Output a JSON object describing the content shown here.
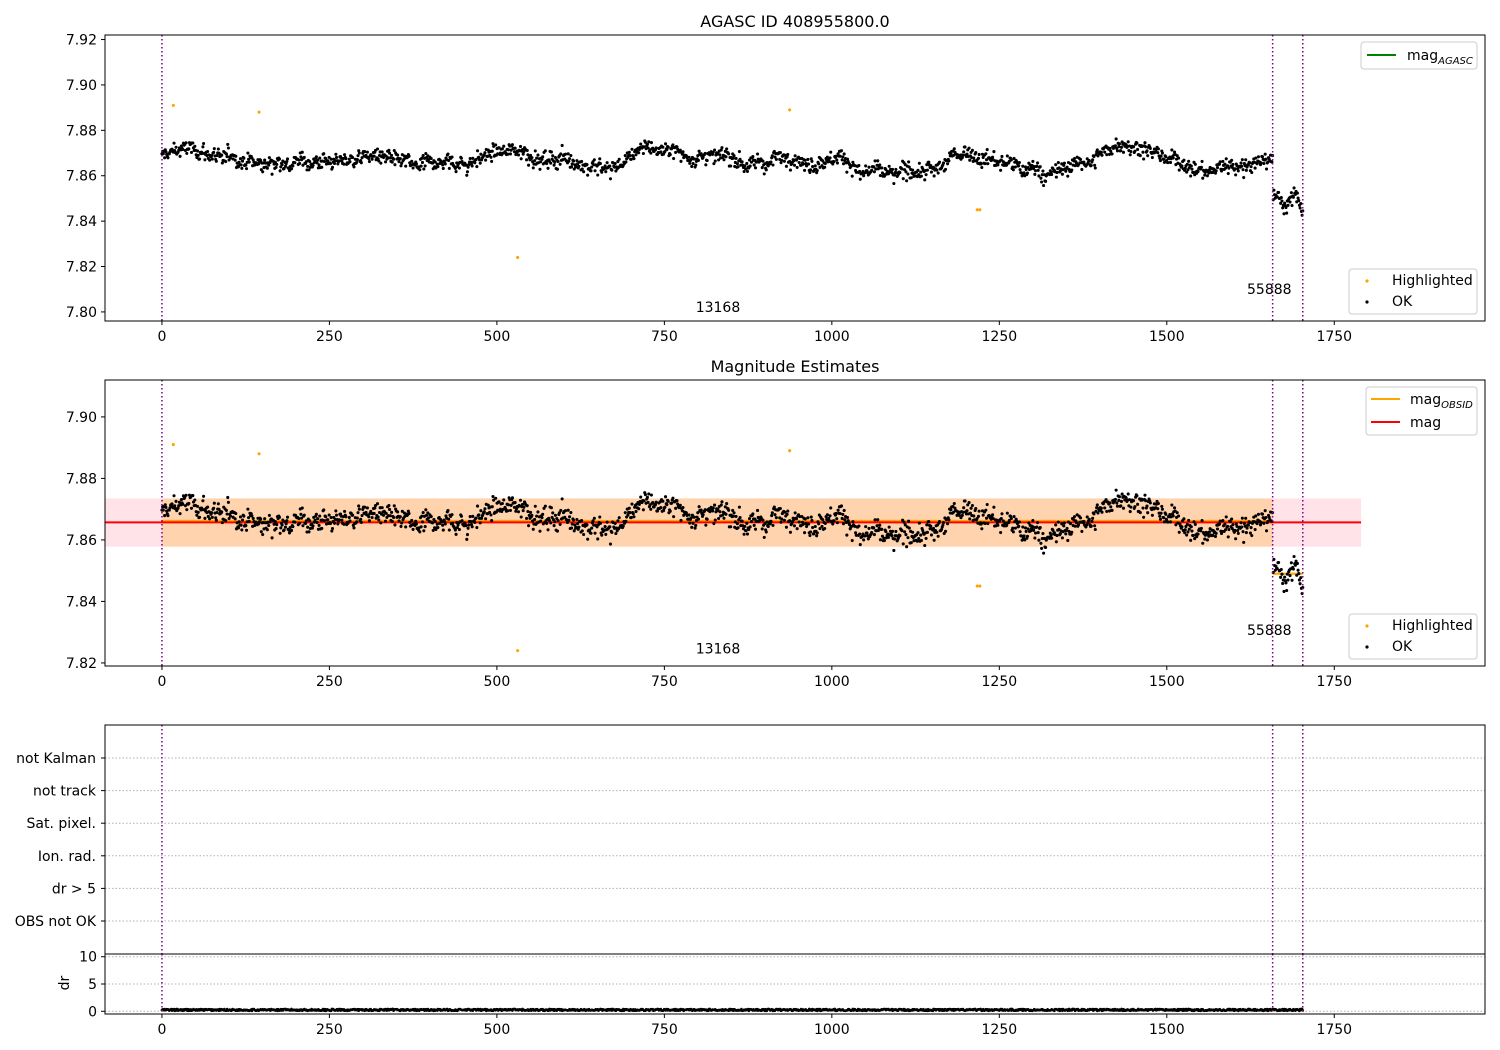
{
  "chart_data": [
    {
      "type": "scatter",
      "title": "AGASC ID 408955800.0",
      "xlabel": "",
      "ylabel": "",
      "xlim": [
        -85,
        1975
      ],
      "ylim": [
        7.796,
        7.922
      ],
      "xticks": [
        0,
        250,
        500,
        750,
        1000,
        1250,
        1500,
        1750
      ],
      "yticks": [
        7.8,
        7.82,
        7.84,
        7.86,
        7.88,
        7.9,
        7.92
      ],
      "ytick_decimals": 2,
      "grid": false,
      "legend_top": {
        "placement": "upper right",
        "entries": [
          {
            "label": "mag",
            "sub": "AGASC",
            "color": "#008000"
          }
        ]
      },
      "legend_bottom": {
        "placement": "lower right",
        "entries": [
          {
            "label": "Highlighted",
            "color": "#ffa500"
          },
          {
            "label": "OK",
            "color": "#000000"
          }
        ]
      },
      "obsid_boundaries": [
        0,
        1658,
        1703
      ],
      "obsid_labels": [
        {
          "text": "13168",
          "x": 830,
          "y": 7.8
        },
        {
          "text": "55888",
          "x": 1653,
          "y": 7.808
        }
      ],
      "series": [
        {
          "name": "Highlighted",
          "color": "#ffa500",
          "points": [
            [
              17,
              7.891
            ],
            [
              145,
              7.888
            ],
            [
              531,
              7.824
            ],
            [
              937,
              7.889
            ],
            [
              1217,
              7.845
            ],
            [
              1221,
              7.845
            ]
          ]
        },
        {
          "name": "OK",
          "color": "#000000",
          "n_points": 1700,
          "x_range": [
            0,
            1703
          ],
          "mag_mean": 7.8657,
          "noise": 0.003
        }
      ]
    },
    {
      "type": "scatter",
      "title": "Magnitude Estimates",
      "xlabel": "",
      "ylabel": "",
      "xlim": [
        -85,
        1975
      ],
      "ylim": [
        7.819,
        7.912
      ],
      "xticks": [
        0,
        250,
        500,
        750,
        1000,
        1250,
        1500,
        1750
      ],
      "yticks": [
        7.82,
        7.84,
        7.86,
        7.88,
        7.9
      ],
      "ytick_decimals": 2,
      "grid": false,
      "legend_top": {
        "placement": "upper right",
        "entries": [
          {
            "label": "mag",
            "sub": "OBSID",
            "color": "#ffa500"
          },
          {
            "label": "mag",
            "sub": "",
            "color": "#ff0000"
          }
        ]
      },
      "legend_bottom": {
        "placement": "lower right",
        "entries": [
          {
            "label": "Highlighted",
            "color": "#ffa500"
          },
          {
            "label": "OK",
            "color": "#000000"
          }
        ]
      },
      "mag_line": {
        "value": 7.8657,
        "x_range": [
          -85,
          1790
        ],
        "color": "#ff0000"
      },
      "mag_band": {
        "low": 7.8578,
        "high": 7.8735,
        "x_range": [
          -85,
          1790
        ],
        "color": "#ffc0cb"
      },
      "obsid_bands": [
        {
          "x_range": [
            0,
            1658
          ],
          "low": 7.8578,
          "high": 7.8735,
          "mag": 7.8662
        },
        {
          "x_range": [
            1658,
            1703
          ],
          "low": 7.8485,
          "high": 7.8495,
          "mag": 7.849
        }
      ],
      "obsid_boundaries": [
        0,
        1658,
        1703
      ],
      "obsid_labels": [
        {
          "text": "13168",
          "x": 830,
          "y": 7.823
        },
        {
          "text": "55888",
          "x": 1653,
          "y": 7.829
        }
      ],
      "series": [
        {
          "name": "Highlighted",
          "color": "#ffa500",
          "points": [
            [
              17,
              7.891
            ],
            [
              145,
              7.888
            ],
            [
              531,
              7.824
            ],
            [
              937,
              7.889
            ],
            [
              1217,
              7.845
            ],
            [
              1221,
              7.845
            ]
          ]
        },
        {
          "name": "OK",
          "color": "#000000",
          "n_points": 1700,
          "x_range": [
            0,
            1703
          ],
          "mag_mean": 7.8657,
          "noise": 0.003
        }
      ]
    },
    {
      "type": "scatter",
      "title": "",
      "xlabel": "",
      "ylabel": "",
      "xlim": [
        -85,
        1975
      ],
      "flag_labels": [
        "not Kalman",
        "not track",
        "Sat. pixel.",
        "Ion. rad.",
        "dr > 5",
        "OBS not OK"
      ],
      "flag_values": [
        0,
        0,
        0,
        0,
        0,
        0
      ],
      "obsid_boundaries": [
        0,
        1658,
        1703
      ]
    },
    {
      "type": "scatter",
      "title": "",
      "xlabel": "",
      "ylabel": "dr",
      "xlim": [
        -85,
        1975
      ],
      "ylim": [
        -0.5,
        10.5
      ],
      "xticks": [
        0,
        250,
        500,
        750,
        1000,
        1250,
        1500,
        1750
      ],
      "yticks": [
        0,
        5,
        10
      ],
      "ytick_decimals": 0,
      "grid": true,
      "obsid_boundaries": [
        0,
        1658,
        1703
      ],
      "series": [
        {
          "name": "dr",
          "color": "#000000",
          "n_points": 1700,
          "x_range": [
            0,
            1703
          ],
          "mean": 0.25,
          "max": 0.7
        }
      ]
    }
  ]
}
